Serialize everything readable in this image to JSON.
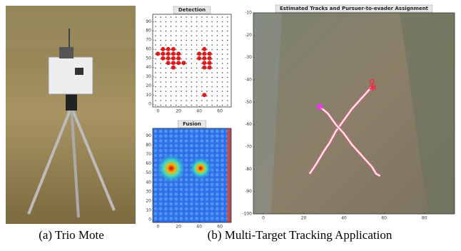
{
  "figure": {
    "captions": [
      "(a) Trio Mote",
      "(b) Multi-Target Tracking Application"
    ]
  },
  "chart_data": [
    {
      "type": "scatter",
      "title": "Detection",
      "x": [
        5,
        10,
        15,
        0,
        5,
        10,
        15,
        20,
        5,
        10,
        15,
        20,
        10,
        15,
        20,
        25,
        15,
        45,
        40,
        45,
        50,
        40,
        45,
        50,
        45,
        50,
        45,
        50,
        45
      ],
      "values": [
        60,
        60,
        60,
        55,
        55,
        55,
        55,
        55,
        50,
        50,
        50,
        50,
        45,
        45,
        45,
        45,
        40,
        60,
        55,
        55,
        55,
        50,
        50,
        50,
        45,
        45,
        40,
        40,
        10
      ],
      "color": "#d81e1e",
      "xlim": [
        -5,
        71
      ],
      "ylim": [
        -3,
        98
      ],
      "xticks": [
        0,
        20,
        40,
        60
      ],
      "yticks": [
        0,
        10,
        20,
        30,
        40,
        50,
        60,
        70,
        80,
        90
      ]
    },
    {
      "type": "heatmap",
      "title": "Fusion",
      "xlim": [
        -5,
        71
      ],
      "ylim": [
        -3,
        98
      ],
      "xticks": [
        0,
        20,
        40,
        60
      ],
      "yticks": [
        0,
        10,
        20,
        30,
        40,
        50,
        60,
        70,
        80,
        90
      ]
    },
    {
      "type": "line",
      "title": "Estimated Tracks and Pursuer-to-evader Assignment",
      "series": [
        {
          "color": "#e8304a",
          "x": [
            23,
            26,
            30,
            33,
            36,
            40,
            44,
            48,
            51,
            54
          ],
          "values": [
            -82,
            -78,
            -72,
            -68,
            -63,
            -58,
            -53,
            -49,
            -46,
            -43
          ]
        },
        {
          "color": "#e040e0",
          "x": [
            28,
            32,
            36,
            40,
            44,
            48,
            51,
            54,
            56,
            58
          ],
          "values": [
            -52,
            -55,
            -60,
            -64,
            -69,
            -73,
            -76,
            -79,
            -82,
            -83
          ]
        }
      ],
      "xlim": [
        -5,
        95
      ],
      "ylim": [
        -100,
        -10
      ],
      "xticks": [
        0,
        20,
        40,
        60,
        80
      ],
      "yticks": [
        -10,
        -20,
        -30,
        -40,
        -50,
        -60,
        -70,
        -80,
        -90,
        -100
      ]
    }
  ]
}
